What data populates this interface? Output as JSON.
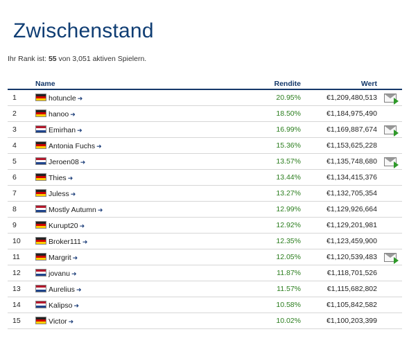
{
  "page": {
    "title": "Zwischenstand",
    "rank_prefix": "Ihr Rank ist: ",
    "rank_value": "55",
    "rank_suffix": " von 3,051 aktiven Spielern."
  },
  "table": {
    "headers": {
      "name": "Name",
      "rendite": "Rendite",
      "wert": "Wert"
    },
    "rows": [
      {
        "rank": "1",
        "flag": "de",
        "name": "hotuncle",
        "rendite": "20.95%",
        "wert": "€1,209,480,513",
        "msg": true
      },
      {
        "rank": "2",
        "flag": "de",
        "name": "hanoo",
        "rendite": "18.50%",
        "wert": "€1,184,975,490",
        "msg": false
      },
      {
        "rank": "3",
        "flag": "nl",
        "name": "Emirhan",
        "rendite": "16.99%",
        "wert": "€1,169,887,674",
        "msg": true
      },
      {
        "rank": "4",
        "flag": "de",
        "name": "Antonia Fuchs",
        "rendite": "15.36%",
        "wert": "€1,153,625,228",
        "msg": false
      },
      {
        "rank": "5",
        "flag": "nl",
        "name": "Jeroen08",
        "rendite": "13.57%",
        "wert": "€1,135,748,680",
        "msg": true
      },
      {
        "rank": "6",
        "flag": "de",
        "name": "Thies",
        "rendite": "13.44%",
        "wert": "€1,134,415,376",
        "msg": false
      },
      {
        "rank": "7",
        "flag": "de",
        "name": "Juless",
        "rendite": "13.27%",
        "wert": "€1,132,705,354",
        "msg": false
      },
      {
        "rank": "8",
        "flag": "nl",
        "name": "Mostly Autumn",
        "rendite": "12.99%",
        "wert": "€1,129,926,664",
        "msg": false
      },
      {
        "rank": "9",
        "flag": "de",
        "name": "Kurupt20",
        "rendite": "12.92%",
        "wert": "€1,129,201,981",
        "msg": false
      },
      {
        "rank": "10",
        "flag": "de",
        "name": "Broker111",
        "rendite": "12.35%",
        "wert": "€1,123,459,900",
        "msg": false
      },
      {
        "rank": "11",
        "flag": "de",
        "name": "Margrit",
        "rendite": "12.05%",
        "wert": "€1,120,539,483",
        "msg": true
      },
      {
        "rank": "12",
        "flag": "nl",
        "name": "jovanu",
        "rendite": "11.87%",
        "wert": "€1,118,701,526",
        "msg": false
      },
      {
        "rank": "13",
        "flag": "nl",
        "name": "Aurelius",
        "rendite": "11.57%",
        "wert": "€1,115,682,802",
        "msg": false
      },
      {
        "rank": "14",
        "flag": "nl",
        "name": "Kalipso",
        "rendite": "10.58%",
        "wert": "€1,105,842,582",
        "msg": false
      },
      {
        "rank": "15",
        "flag": "de",
        "name": "Victor",
        "rendite": "10.02%",
        "wert": "€1,100,203,399",
        "msg": false
      }
    ]
  },
  "icons": {
    "arrow": "arrow-right-icon",
    "message": "message-envelope-icon"
  },
  "colors": {
    "title": "#0f3d73",
    "header": "#14386a",
    "rendite": "#2a7d1d"
  }
}
